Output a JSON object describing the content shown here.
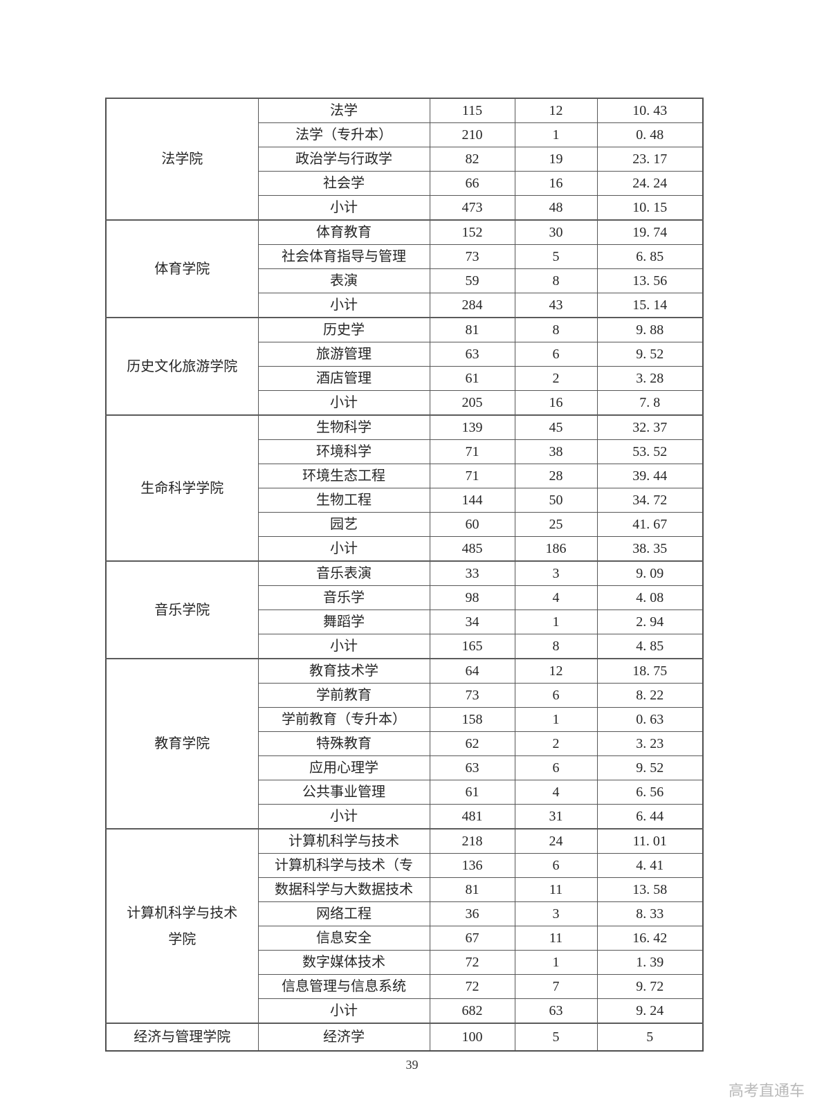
{
  "page": {
    "number": "39",
    "watermark": "高考直通车",
    "background": "#ffffff",
    "border_color": "#565656",
    "text_color": "#262626"
  },
  "table": {
    "columns": [
      "college",
      "major",
      "value1",
      "value2",
      "value3"
    ],
    "sections": [
      {
        "college": "法学院",
        "rows": [
          {
            "major": "法学",
            "values": [
              "115",
              "12",
              "10. 43"
            ]
          },
          {
            "major": "法学（专升本）",
            "values": [
              "210",
              "1",
              "0. 48"
            ]
          },
          {
            "major": "政治学与行政学",
            "values": [
              "82",
              "19",
              "23. 17"
            ]
          },
          {
            "major": "社会学",
            "values": [
              "66",
              "16",
              "24. 24"
            ]
          },
          {
            "major": "小计",
            "values": [
              "473",
              "48",
              "10. 15"
            ]
          }
        ]
      },
      {
        "college": "体育学院",
        "rows": [
          {
            "major": "体育教育",
            "values": [
              "152",
              "30",
              "19. 74"
            ]
          },
          {
            "major": "社会体育指导与管理",
            "values": [
              "73",
              "5",
              "6. 85"
            ]
          },
          {
            "major": "表演",
            "values": [
              "59",
              "8",
              "13. 56"
            ]
          },
          {
            "major": "小计",
            "values": [
              "284",
              "43",
              "15. 14"
            ]
          }
        ]
      },
      {
        "college": "历史文化旅游学院",
        "rows": [
          {
            "major": "历史学",
            "values": [
              "81",
              "8",
              "9. 88"
            ]
          },
          {
            "major": "旅游管理",
            "values": [
              "63",
              "6",
              "9. 52"
            ]
          },
          {
            "major": "酒店管理",
            "values": [
              "61",
              "2",
              "3. 28"
            ]
          },
          {
            "major": "小计",
            "values": [
              "205",
              "16",
              "7. 8"
            ]
          }
        ]
      },
      {
        "college": "生命科学学院",
        "rows": [
          {
            "major": "生物科学",
            "values": [
              "139",
              "45",
              "32. 37"
            ]
          },
          {
            "major": "环境科学",
            "values": [
              "71",
              "38",
              "53. 52"
            ]
          },
          {
            "major": "环境生态工程",
            "values": [
              "71",
              "28",
              "39. 44"
            ]
          },
          {
            "major": "生物工程",
            "values": [
              "144",
              "50",
              "34. 72"
            ]
          },
          {
            "major": "园艺",
            "values": [
              "60",
              "25",
              "41. 67"
            ]
          },
          {
            "major": "小计",
            "values": [
              "485",
              "186",
              "38. 35"
            ]
          }
        ]
      },
      {
        "college": "音乐学院",
        "rows": [
          {
            "major": "音乐表演",
            "values": [
              "33",
              "3",
              "9. 09"
            ]
          },
          {
            "major": "音乐学",
            "values": [
              "98",
              "4",
              "4. 08"
            ]
          },
          {
            "major": "舞蹈学",
            "values": [
              "34",
              "1",
              "2. 94"
            ]
          },
          {
            "major": "小计",
            "values": [
              "165",
              "8",
              "4. 85"
            ]
          }
        ]
      },
      {
        "college": "教育学院",
        "rows": [
          {
            "major": "教育技术学",
            "values": [
              "64",
              "12",
              "18. 75"
            ]
          },
          {
            "major": "学前教育",
            "values": [
              "73",
              "6",
              "8. 22"
            ]
          },
          {
            "major": "学前教育（专升本）",
            "values": [
              "158",
              "1",
              "0. 63"
            ]
          },
          {
            "major": "特殊教育",
            "values": [
              "62",
              "2",
              "3. 23"
            ]
          },
          {
            "major": "应用心理学",
            "values": [
              "63",
              "6",
              "9. 52"
            ]
          },
          {
            "major": "公共事业管理",
            "values": [
              "61",
              "4",
              "6. 56"
            ]
          },
          {
            "major": "小计",
            "values": [
              "481",
              "31",
              "6. 44"
            ]
          }
        ]
      },
      {
        "college": "计算机科学与技术学院",
        "rows": [
          {
            "major": "计算机科学与技术",
            "values": [
              "218",
              "24",
              "11. 01"
            ]
          },
          {
            "major": "计算机科学与技术（专",
            "values": [
              "136",
              "6",
              "4. 41"
            ]
          },
          {
            "major": "数据科学与大数据技术",
            "values": [
              "81",
              "11",
              "13. 58"
            ]
          },
          {
            "major": "网络工程",
            "values": [
              "36",
              "3",
              "8. 33"
            ]
          },
          {
            "major": "信息安全",
            "values": [
              "67",
              "11",
              "16. 42"
            ]
          },
          {
            "major": "数字媒体技术",
            "values": [
              "72",
              "1",
              "1. 39"
            ]
          },
          {
            "major": "信息管理与信息系统",
            "values": [
              "72",
              "7",
              "9. 72"
            ]
          },
          {
            "major": "小计",
            "values": [
              "682",
              "63",
              "9. 24"
            ]
          }
        ]
      },
      {
        "college": "经济与管理学院",
        "rows": [
          {
            "major": "经济学",
            "values": [
              "100",
              "5",
              "5"
            ]
          }
        ]
      }
    ]
  }
}
